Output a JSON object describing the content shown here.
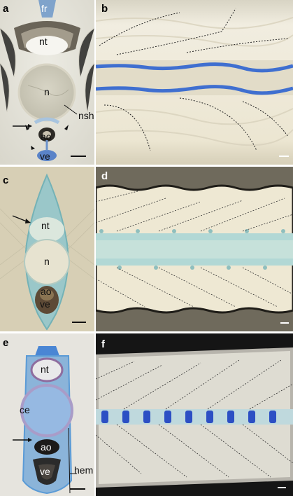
{
  "figure": {
    "panels": [
      {
        "id": "a",
        "letter": "a",
        "labels": [
          "fr",
          "nt",
          "n",
          "nsh",
          "ao",
          "ve"
        ]
      },
      {
        "id": "b",
        "letter": "b"
      },
      {
        "id": "c",
        "letter": "c",
        "labels": [
          "nt",
          "n",
          "ao",
          "ve"
        ]
      },
      {
        "id": "d",
        "letter": "d"
      },
      {
        "id": "e",
        "letter": "e",
        "labels": [
          "nt",
          "ce",
          "ao",
          "ve",
          "hem"
        ]
      },
      {
        "id": "f",
        "letter": "f"
      }
    ],
    "colors": {
      "stain_blue": "#3f6fd0",
      "cartilage_cyan": "#8ec8d0",
      "tissue_cream": "#efe9d8",
      "background_dark": "#141414",
      "background_light": "#e9e7df"
    }
  }
}
